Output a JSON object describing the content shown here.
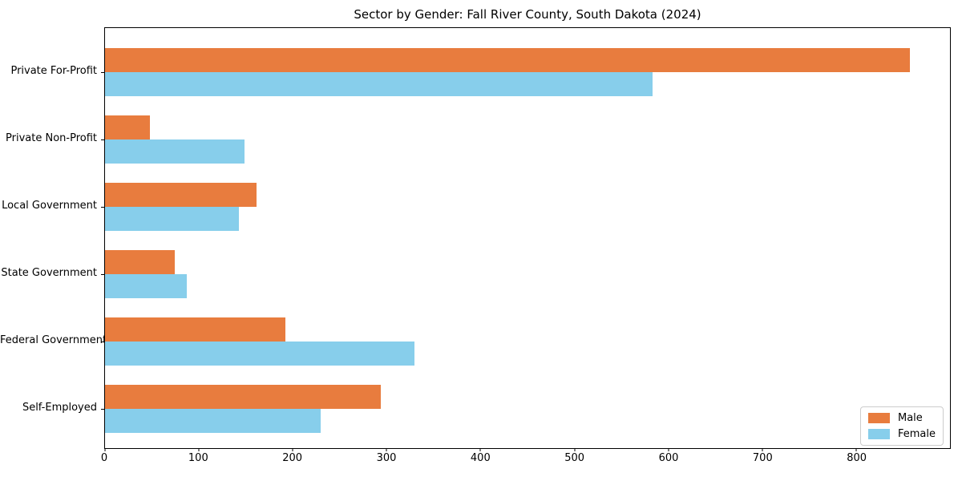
{
  "chart_data": {
    "type": "bar",
    "orientation": "horizontal",
    "title": "Sector by Gender: Fall River County, South Dakota (2024)",
    "categories": [
      "Private For-Profit",
      "Private Non-Profit",
      "Local Government",
      "State Government",
      "Federal Government",
      "Self-Employed"
    ],
    "series": [
      {
        "name": "Male",
        "color": "#E87C3E",
        "values": [
          857,
          48,
          161,
          74,
          192,
          294
        ]
      },
      {
        "name": "Female",
        "color": "#87CEEB",
        "values": [
          583,
          149,
          143,
          87,
          330,
          230
        ]
      }
    ],
    "xlabel": "",
    "ylabel": "",
    "xlim": [
      0,
      900
    ],
    "x_ticks": [
      0,
      100,
      200,
      300,
      400,
      500,
      600,
      700,
      800
    ],
    "grid": false,
    "legend": {
      "position": "lower-right"
    }
  }
}
